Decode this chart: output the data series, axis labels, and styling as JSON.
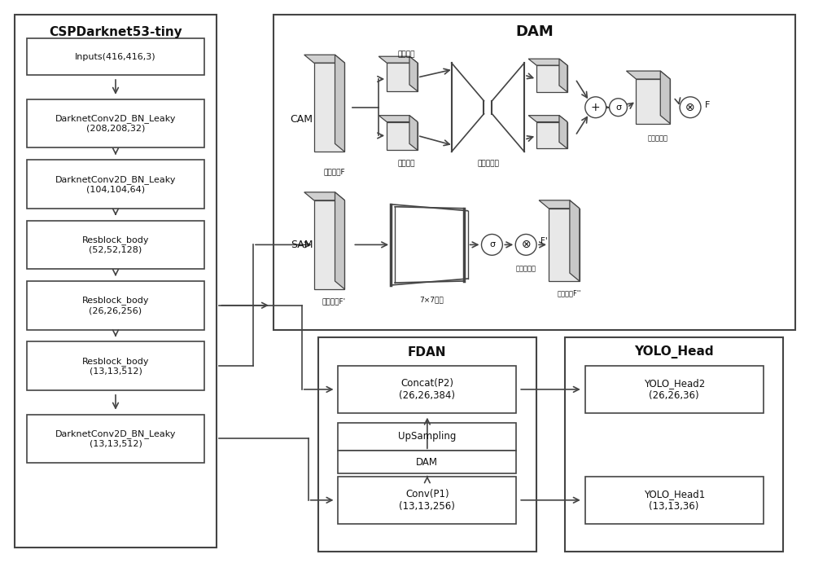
{
  "fig_width": 10.0,
  "fig_height": 6.91,
  "bg_color": "#ffffff",
  "edge_color": "#444444",
  "text_color": "#111111",
  "csp_title": "CSPDarknet53-tiny",
  "dam_title": "DAM",
  "fdan_title": "FDAN",
  "yolo_title": "YOLO_Head",
  "cam_label": "CAM",
  "sam_label": "SAM",
  "cam_input_label": "输入特征F",
  "max_pool_label": "最大池化",
  "avg_pool_label": "平均池化",
  "mlp_label": "多层感知机",
  "channel_att_label": "通道注意力",
  "sam_input_label": "输入特征F'",
  "conv7_label": "7×7卷积",
  "spatial_att_label": "空间注意力",
  "output_label": "输出特征F''",
  "csp_boxes": [
    "Inputs(416,416,3)",
    "DarknetConv2D_BN_Leaky\n(208,208,32)",
    "DarknetConv2D_BN_Leaky\n(104,104,64)",
    "Resblock_body\n(52,52,128)",
    "Resblock_body\n(26,26,256)",
    "Resblock_body\n(13,13,512)",
    "DarknetConv2D_BN_Leaky\n(13,13,512)"
  ],
  "fdan_boxes": [
    "Concat(P2)\n(26,26,384)",
    "UpSampling",
    "DAM",
    "Conv(P1)\n(13,13,256)"
  ],
  "yolo_boxes": [
    "YOLO_Head2\n(26,26,36)",
    "YOLO_Head1\n(13,13,36)"
  ]
}
